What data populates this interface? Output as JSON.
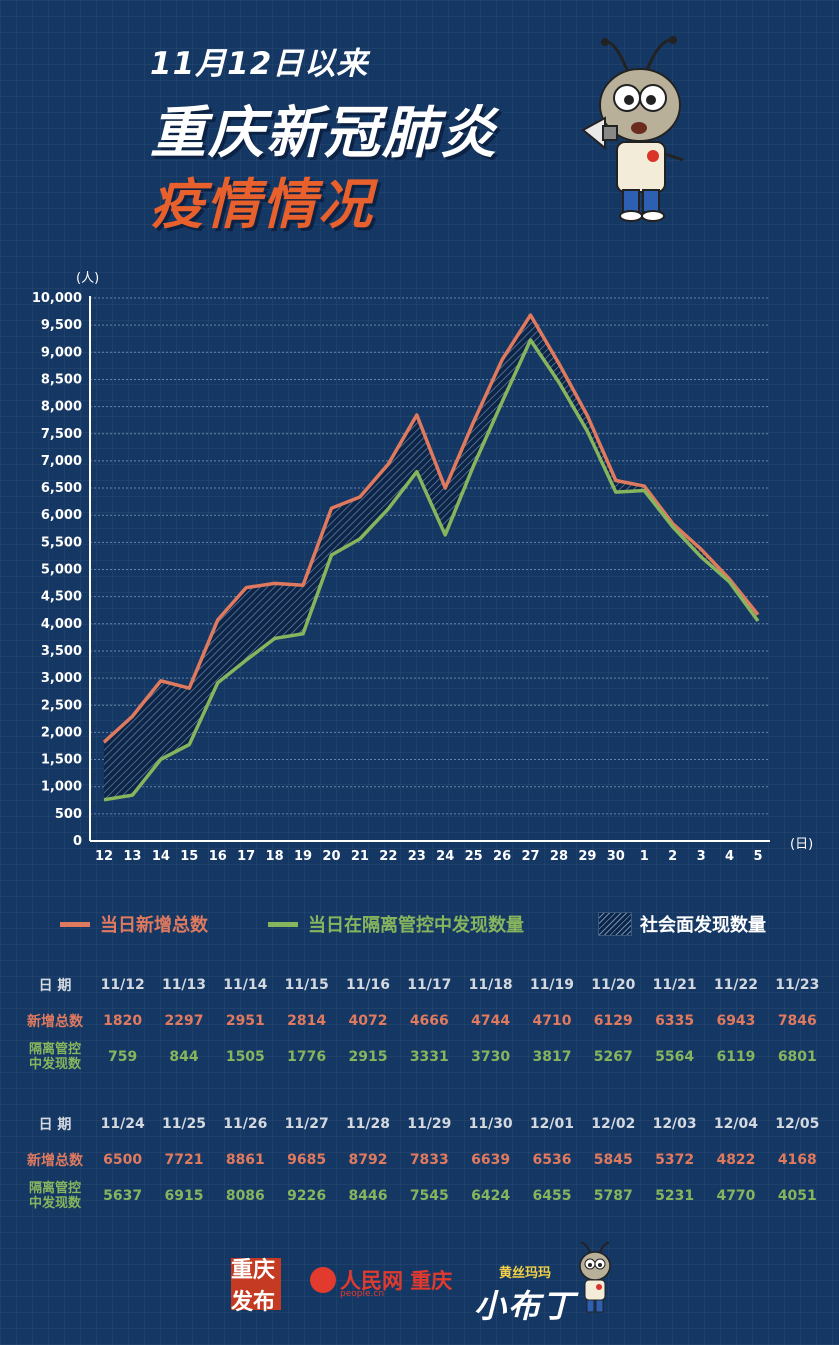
{
  "header": {
    "date_line": "11月12日以来",
    "title": "重庆新冠肺炎",
    "subtitle": "疫情情况"
  },
  "colors": {
    "background": "#153763",
    "total_line": "#e07a5f",
    "quarantine_line": "#87b55e",
    "hatch_fill": "#0d2546"
  },
  "chart_data": {
    "type": "line",
    "yunit": "(人)",
    "xunit": "(日)",
    "ylim": [
      0,
      10000
    ],
    "ytick_step": 500,
    "yticks": [
      "0",
      "500",
      "1,000",
      "1,500",
      "2,000",
      "2,500",
      "3,000",
      "3,500",
      "4,000",
      "4,500",
      "5,000",
      "5,500",
      "6,000",
      "6,500",
      "7,000",
      "7,500",
      "8,000",
      "8,500",
      "9,000",
      "9,500",
      "10,000"
    ],
    "categories": [
      "12",
      "13",
      "14",
      "15",
      "16",
      "17",
      "18",
      "19",
      "20",
      "21",
      "22",
      "23",
      "24",
      "25",
      "26",
      "27",
      "28",
      "29",
      "30",
      "1",
      "2",
      "3",
      "4",
      "5"
    ],
    "grid": true,
    "legend_position": "bottom",
    "series": [
      {
        "name": "当日新增总数",
        "color": "#e07a5f",
        "values": [
          1820,
          2297,
          2951,
          2814,
          4072,
          4666,
          4744,
          4710,
          6129,
          6335,
          6943,
          7846,
          6500,
          7721,
          8861,
          9685,
          8792,
          7833,
          6639,
          6536,
          5845,
          5372,
          4822,
          4168
        ]
      },
      {
        "name": "当日在隔离管控中发现数量",
        "color": "#87b55e",
        "values": [
          759,
          844,
          1505,
          1776,
          2915,
          3331,
          3730,
          3817,
          5267,
          5564,
          6119,
          6801,
          5637,
          6915,
          8086,
          9226,
          8446,
          7545,
          6424,
          6455,
          5787,
          5231,
          4770,
          4051
        ]
      }
    ],
    "area": {
      "name": "社会面发现数量",
      "pattern": "hatch"
    }
  },
  "table": {
    "row_labels": {
      "date": "日 期",
      "total": "新增总数",
      "quarantine_1": "隔离管控",
      "quarantine_2": "中发现数"
    },
    "part1": {
      "dates": [
        "11/12",
        "11/13",
        "11/14",
        "11/15",
        "11/16",
        "11/17",
        "11/18",
        "11/19",
        "11/20",
        "11/21",
        "11/22",
        "11/23"
      ],
      "total": [
        "1820",
        "2297",
        "2951",
        "2814",
        "4072",
        "4666",
        "4744",
        "4710",
        "6129",
        "6335",
        "6943",
        "7846"
      ],
      "quarantine": [
        "759",
        "844",
        "1505",
        "1776",
        "2915",
        "3331",
        "3730",
        "3817",
        "5267",
        "5564",
        "6119",
        "6801"
      ]
    },
    "part2": {
      "dates": [
        "11/24",
        "11/25",
        "11/26",
        "11/27",
        "11/28",
        "11/29",
        "11/30",
        "12/01",
        "12/02",
        "12/03",
        "12/04",
        "12/05"
      ],
      "total": [
        "6500",
        "7721",
        "8861",
        "9685",
        "8792",
        "7833",
        "6639",
        "6536",
        "5845",
        "5372",
        "4822",
        "4168"
      ],
      "quarantine": [
        "5637",
        "6915",
        "8086",
        "9226",
        "8446",
        "7545",
        "6424",
        "6455",
        "5787",
        "5231",
        "4770",
        "4051"
      ]
    }
  },
  "footer": {
    "logo1": "重庆发布",
    "logo2": "人民网 重庆",
    "logo2_sub": "people.cn",
    "logo3_small": "黄丝玛玛",
    "logo3_big": "小布丁"
  }
}
